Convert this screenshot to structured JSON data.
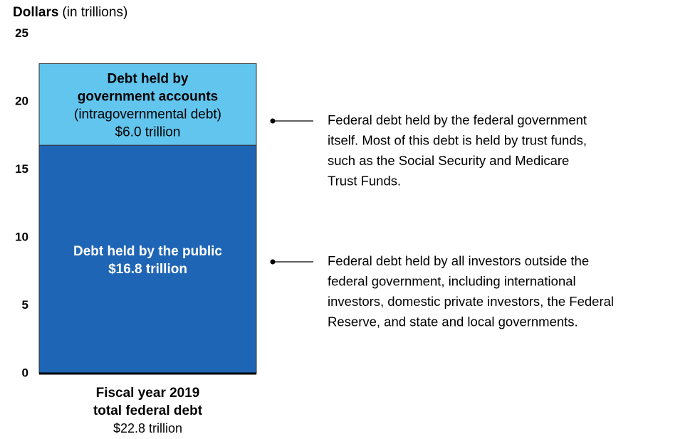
{
  "chart_data": {
    "type": "stacked_bar",
    "ylabel_bold": "Dollars",
    "ylabel_rest": "(in trillions)",
    "ylim": [
      0,
      25
    ],
    "yticks": [
      0,
      5,
      10,
      15,
      20,
      25
    ],
    "category_lines": [
      "Fiscal year 2019",
      "total federal debt"
    ],
    "category_note": "$22.8 trillion",
    "series": [
      {
        "label_lines": [
          "Debt held by the public"
        ],
        "color": "#1f65b5",
        "text_color": "#ffffff",
        "values": [
          16.8
        ],
        "value_labels": [
          "$16.8 trillion"
        ],
        "annotation": [
          "Federal debt held by all investors outside the",
          "federal government, including international",
          "investors, domestic private investors, the Federal",
          "Reserve, and state and local governments."
        ]
      },
      {
        "label_lines": [
          "Debt held by",
          "government accounts"
        ],
        "note": "(intragovernmental debt)",
        "color": "#62c5ee",
        "text_color": "#000000",
        "values": [
          6.0
        ],
        "value_labels": [
          "$6.0 trillion"
        ],
        "annotation": [
          "Federal debt held by the federal government",
          "itself. Most of this debt is held by trust funds,",
          "such as the Social Security and Medicare",
          "Trust Funds."
        ]
      }
    ]
  }
}
